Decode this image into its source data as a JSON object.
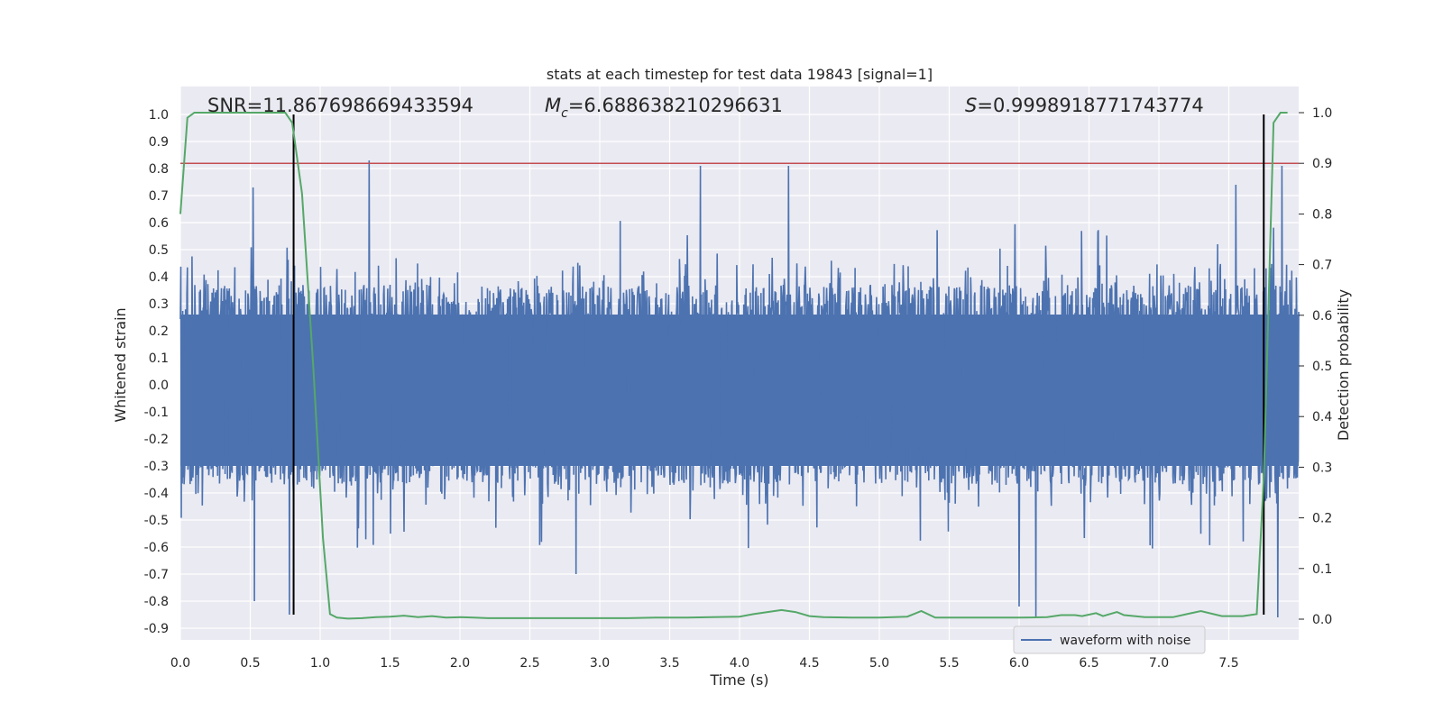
{
  "chart_data": {
    "type": "line",
    "title": "stats at each timestep for test data 19843 [signal=1]",
    "xlabel": "Time (s)",
    "ylabel": "Whitened strain",
    "y2label": "Detection probability",
    "xlim": [
      0.0,
      8.0
    ],
    "ylim": [
      -0.95,
      1.08
    ],
    "y2lim": [
      -0.05,
      1.05
    ],
    "x_ticks": [
      0.0,
      0.5,
      1.0,
      1.5,
      2.0,
      2.5,
      3.0,
      3.5,
      4.0,
      4.5,
      5.0,
      5.5,
      6.0,
      6.5,
      7.0,
      7.5
    ],
    "x_tick_labels": [
      "0.0",
      "0.5",
      "1.0",
      "1.5",
      "2.0",
      "2.5",
      "3.0",
      "3.5",
      "4.0",
      "4.5",
      "5.0",
      "5.5",
      "6.0",
      "6.5",
      "7.0",
      "7.5"
    ],
    "y_ticks": [
      1.0,
      0.9,
      0.8,
      0.7,
      0.6,
      0.5,
      0.4,
      0.3,
      0.2,
      0.1,
      0.0,
      -0.1,
      -0.2,
      -0.3,
      -0.4,
      -0.5,
      -0.6,
      -0.7,
      -0.8,
      -0.9
    ],
    "y_tick_labels": [
      "1.0",
      "0.9",
      "0.8",
      "0.7",
      "0.6",
      "0.5",
      "0.4",
      "0.3",
      "0.2",
      "0.1",
      "0.0",
      "-0.1",
      "-0.2",
      "-0.3",
      "-0.4",
      "-0.5",
      "-0.6",
      "-0.7",
      "-0.8",
      "-0.9"
    ],
    "y2_ticks": [
      1.0,
      0.9,
      0.8,
      0.7,
      0.6,
      0.5,
      0.4,
      0.3,
      0.2,
      0.1,
      0.0
    ],
    "y2_tick_labels": [
      "1.0",
      "0.9",
      "0.8",
      "0.7",
      "0.6",
      "0.5",
      "0.4",
      "0.3",
      "0.2",
      "0.1",
      "0.0"
    ],
    "annotations": {
      "snr": "SNR=11.867698669433594",
      "mc_symbol": "M",
      "mc_sub": "c",
      "mc_value": "=6.688638210296631",
      "s_symbol": "S",
      "s_value": "=0.9998918771743774"
    },
    "series": [
      {
        "name": "waveform with noise",
        "axis": "left",
        "color": "#4c72b0",
        "kind": "dense-noise",
        "typical_envelope": [
          -0.45,
          0.45
        ],
        "spikes": [
          {
            "x": 0.52,
            "y": 0.73
          },
          {
            "x": 1.35,
            "y": 0.83
          },
          {
            "x": 3.72,
            "y": 0.81
          },
          {
            "x": 4.35,
            "y": 0.81
          },
          {
            "x": 7.55,
            "y": 0.74
          },
          {
            "x": 7.88,
            "y": 0.81
          },
          {
            "x": 0.53,
            "y": -0.8
          },
          {
            "x": 0.78,
            "y": -0.85
          },
          {
            "x": 2.83,
            "y": -0.7
          },
          {
            "x": 6.0,
            "y": -0.82
          },
          {
            "x": 6.12,
            "y": -0.86
          },
          {
            "x": 7.85,
            "y": -0.86
          }
        ]
      },
      {
        "name": "detection probability",
        "axis": "right",
        "color": "#55a868",
        "x": [
          0.0,
          0.05,
          0.1,
          0.2,
          0.4,
          0.6,
          0.75,
          0.8,
          0.87,
          0.95,
          1.02,
          1.07,
          1.12,
          1.2,
          1.3,
          1.4,
          1.5,
          1.6,
          1.7,
          1.8,
          1.9,
          2.0,
          2.1,
          2.2,
          2.4,
          2.6,
          2.8,
          3.0,
          3.2,
          3.4,
          3.6,
          3.8,
          4.0,
          4.1,
          4.2,
          4.3,
          4.4,
          4.5,
          4.6,
          4.8,
          5.0,
          5.2,
          5.3,
          5.4,
          5.6,
          5.8,
          6.0,
          6.2,
          6.3,
          6.4,
          6.45,
          6.55,
          6.6,
          6.7,
          6.75,
          6.9,
          7.1,
          7.2,
          7.3,
          7.45,
          7.6,
          7.7,
          7.75,
          7.82,
          7.87,
          7.92
        ],
        "y": [
          0.8,
          0.99,
          1.0,
          1.0,
          1.0,
          1.0,
          1.0,
          0.98,
          0.84,
          0.5,
          0.16,
          0.01,
          0.003,
          0.001,
          0.002,
          0.004,
          0.005,
          0.007,
          0.004,
          0.006,
          0.003,
          0.004,
          0.003,
          0.002,
          0.002,
          0.002,
          0.002,
          0.002,
          0.002,
          0.003,
          0.003,
          0.004,
          0.005,
          0.01,
          0.014,
          0.018,
          0.014,
          0.006,
          0.004,
          0.003,
          0.003,
          0.005,
          0.016,
          0.003,
          0.003,
          0.003,
          0.003,
          0.004,
          0.008,
          0.008,
          0.006,
          0.012,
          0.006,
          0.014,
          0.008,
          0.004,
          0.004,
          0.01,
          0.016,
          0.006,
          0.006,
          0.01,
          0.28,
          0.98,
          1.0,
          1.0
        ]
      }
    ],
    "hlines": [
      {
        "axis": "right",
        "y": 0.9,
        "color": "#c44e52"
      }
    ],
    "vlines": [
      {
        "x": 0.81,
        "y_from": -0.85,
        "y_to": 1.0,
        "color": "#000000"
      },
      {
        "x": 7.75,
        "y_from": -0.85,
        "y_to": 1.0,
        "color": "#000000"
      }
    ],
    "legend": {
      "placement": "bottom-right",
      "label": "waveform with noise"
    }
  }
}
